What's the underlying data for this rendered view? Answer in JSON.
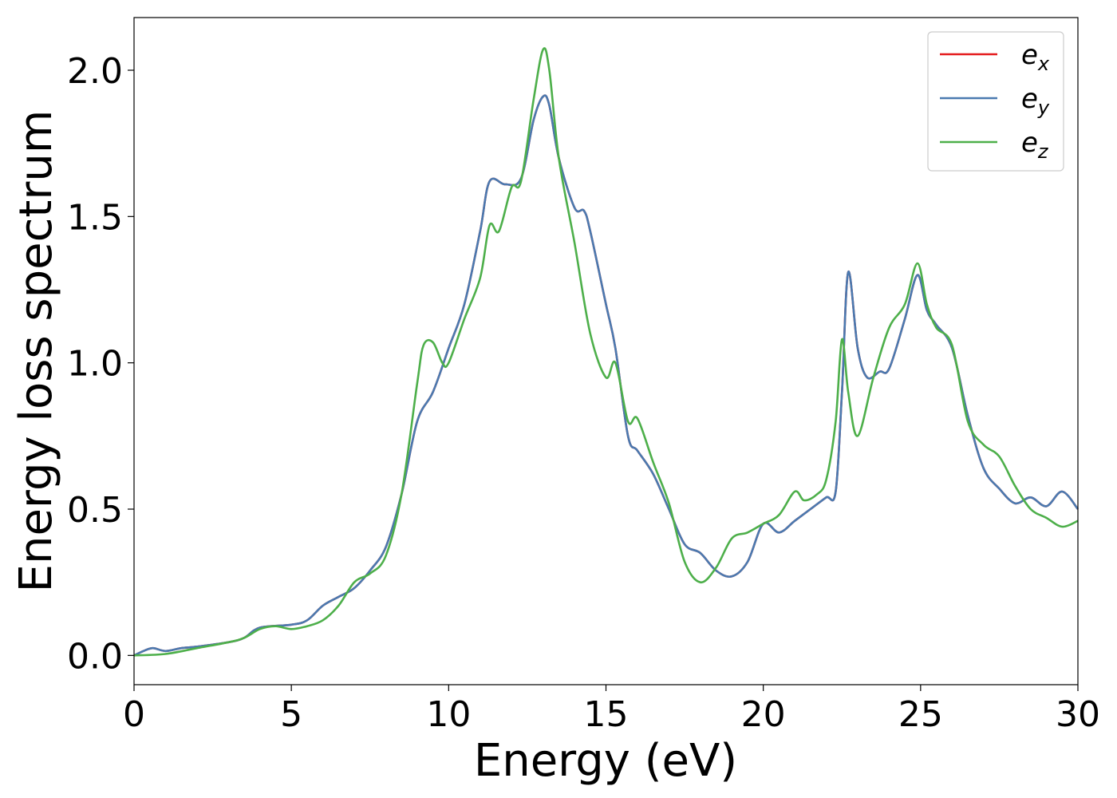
{
  "chart_data": {
    "type": "line",
    "title": "",
    "xlabel": "Energy (eV)",
    "ylabel": "Energy loss spectrum",
    "xlim": [
      0,
      30
    ],
    "ylim": [
      -0.1,
      2.18
    ],
    "xticks": [
      0,
      5,
      10,
      15,
      20,
      25,
      30
    ],
    "xtick_labels": [
      "0",
      "5",
      "10",
      "15",
      "20",
      "25",
      "30"
    ],
    "yticks": [
      0.0,
      0.5,
      1.0,
      1.5,
      2.0
    ],
    "ytick_labels": [
      "0.0",
      "0.5",
      "1.0",
      "1.5",
      "2.0"
    ],
    "grid": false,
    "legend_position": "top-right",
    "series": [
      {
        "name": "e",
        "subscript": "x",
        "color": "#e41a1c",
        "x": [
          0,
          0.3,
          0.6,
          1,
          1.5,
          2,
          3,
          3.5,
          4,
          5,
          5.5,
          6,
          6.5,
          7,
          7.5,
          8,
          8.5,
          9,
          9.5,
          10,
          10.5,
          11,
          11.3,
          11.8,
          12.3,
          12.7,
          13,
          13.2,
          13.5,
          14,
          14.3,
          14.5,
          15,
          15.3,
          15.7,
          16,
          16.5,
          17,
          17.5,
          18,
          18.5,
          19,
          19.5,
          20,
          20.5,
          21,
          21.5,
          22,
          22.3,
          22.5,
          22.7,
          23,
          23.3,
          23.7,
          24,
          24.5,
          24.9,
          25.2,
          25.5,
          26,
          26.5,
          27,
          27.5,
          28,
          28.5,
          29,
          29.5,
          30
        ],
        "y": [
          0,
          0.015,
          0.025,
          0.015,
          0.025,
          0.03,
          0.045,
          0.06,
          0.095,
          0.105,
          0.12,
          0.17,
          0.2,
          0.23,
          0.29,
          0.37,
          0.55,
          0.8,
          0.9,
          1.05,
          1.2,
          1.45,
          1.62,
          1.61,
          1.63,
          1.83,
          1.91,
          1.88,
          1.7,
          1.53,
          1.52,
          1.45,
          1.2,
          1.05,
          0.75,
          0.7,
          0.62,
          0.5,
          0.38,
          0.35,
          0.29,
          0.27,
          0.32,
          0.45,
          0.42,
          0.46,
          0.5,
          0.54,
          0.56,
          0.9,
          1.31,
          1.05,
          0.95,
          0.97,
          0.98,
          1.15,
          1.3,
          1.18,
          1.13,
          1.05,
          0.82,
          0.64,
          0.57,
          0.52,
          0.54,
          0.51,
          0.56,
          0.5
        ]
      },
      {
        "name": "e",
        "subscript": "y",
        "color": "#4a7ab0",
        "x": [
          0,
          0.3,
          0.6,
          1,
          1.5,
          2,
          3,
          3.5,
          4,
          5,
          5.5,
          6,
          6.5,
          7,
          7.5,
          8,
          8.5,
          9,
          9.5,
          10,
          10.5,
          11,
          11.3,
          11.8,
          12.3,
          12.7,
          13,
          13.2,
          13.5,
          14,
          14.3,
          14.5,
          15,
          15.3,
          15.7,
          16,
          16.5,
          17,
          17.5,
          18,
          18.5,
          19,
          19.5,
          20,
          20.5,
          21,
          21.5,
          22,
          22.3,
          22.5,
          22.7,
          23,
          23.3,
          23.7,
          24,
          24.5,
          24.9,
          25.2,
          25.5,
          26,
          26.5,
          27,
          27.5,
          28,
          28.5,
          29,
          29.5,
          30
        ],
        "y": [
          0,
          0.015,
          0.025,
          0.015,
          0.025,
          0.03,
          0.045,
          0.06,
          0.095,
          0.105,
          0.12,
          0.17,
          0.2,
          0.23,
          0.29,
          0.37,
          0.55,
          0.8,
          0.9,
          1.05,
          1.2,
          1.45,
          1.62,
          1.61,
          1.63,
          1.83,
          1.91,
          1.88,
          1.7,
          1.53,
          1.52,
          1.45,
          1.2,
          1.05,
          0.75,
          0.7,
          0.62,
          0.5,
          0.38,
          0.35,
          0.29,
          0.27,
          0.32,
          0.45,
          0.42,
          0.46,
          0.5,
          0.54,
          0.56,
          0.9,
          1.31,
          1.05,
          0.95,
          0.97,
          0.98,
          1.15,
          1.3,
          1.18,
          1.13,
          1.05,
          0.82,
          0.64,
          0.57,
          0.52,
          0.54,
          0.51,
          0.56,
          0.5
        ]
      },
      {
        "name": "e",
        "subscript": "z",
        "color": "#4daf4a",
        "x": [
          0,
          1,
          2,
          3,
          3.5,
          4,
          4.5,
          5,
          5.5,
          6,
          6.5,
          7,
          7.5,
          8,
          8.5,
          9,
          9.2,
          9.5,
          9.8,
          10,
          10.5,
          11,
          11.3,
          11.6,
          12,
          12.3,
          12.7,
          13,
          13.2,
          13.5,
          14,
          14.5,
          15,
          15.3,
          15.7,
          16,
          16.5,
          17,
          17.5,
          18,
          18.5,
          19,
          19.5,
          20,
          20.5,
          21,
          21.3,
          21.7,
          22,
          22.3,
          22.5,
          22.7,
          23,
          23.5,
          24,
          24.5,
          24.9,
          25.2,
          25.5,
          26,
          26.5,
          27,
          27.5,
          28,
          28.5,
          29,
          29.5,
          30
        ],
        "y": [
          0,
          0.005,
          0.025,
          0.045,
          0.06,
          0.09,
          0.1,
          0.09,
          0.1,
          0.12,
          0.17,
          0.25,
          0.28,
          0.34,
          0.55,
          0.93,
          1.06,
          1.07,
          1,
          1.0,
          1.15,
          1.29,
          1.47,
          1.45,
          1.6,
          1.62,
          1.9,
          2.07,
          2.0,
          1.7,
          1.41,
          1.1,
          0.95,
          1.0,
          0.8,
          0.81,
          0.66,
          0.52,
          0.32,
          0.25,
          0.3,
          0.4,
          0.42,
          0.45,
          0.48,
          0.56,
          0.53,
          0.55,
          0.6,
          0.8,
          1.08,
          0.9,
          0.75,
          0.95,
          1.12,
          1.2,
          1.34,
          1.2,
          1.12,
          1.06,
          0.8,
          0.72,
          0.68,
          0.58,
          0.5,
          0.47,
          0.44,
          0.46
        ]
      }
    ]
  }
}
